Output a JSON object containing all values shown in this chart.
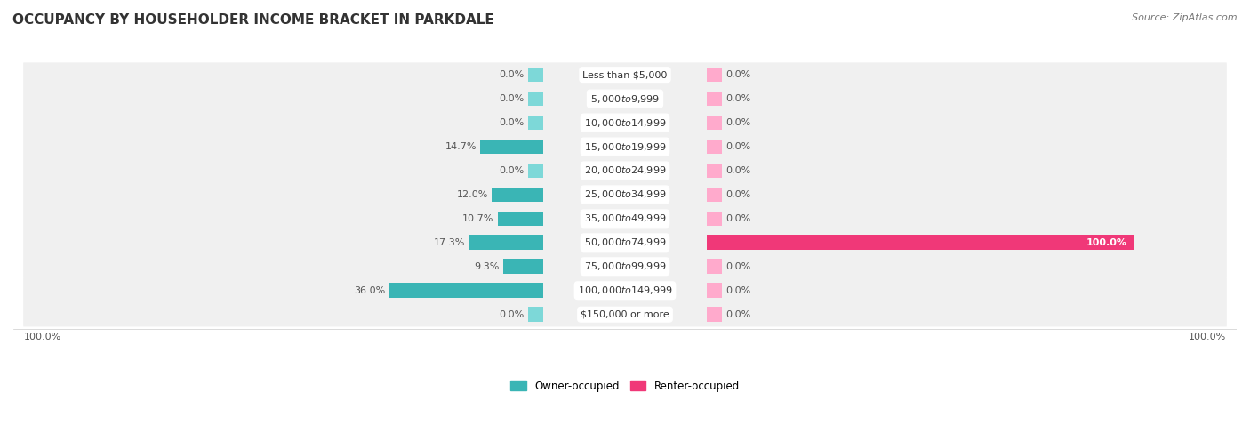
{
  "title": "OCCUPANCY BY HOUSEHOLDER INCOME BRACKET IN PARKDALE",
  "source": "Source: ZipAtlas.com",
  "categories": [
    "Less than $5,000",
    "$5,000 to $9,999",
    "$10,000 to $14,999",
    "$15,000 to $19,999",
    "$20,000 to $24,999",
    "$25,000 to $34,999",
    "$35,000 to $49,999",
    "$50,000 to $74,999",
    "$75,000 to $99,999",
    "$100,000 to $149,999",
    "$150,000 or more"
  ],
  "owner_pct": [
    0.0,
    0.0,
    0.0,
    14.7,
    0.0,
    12.0,
    10.7,
    17.3,
    9.3,
    36.0,
    0.0
  ],
  "renter_pct": [
    0.0,
    0.0,
    0.0,
    0.0,
    0.0,
    0.0,
    0.0,
    100.0,
    0.0,
    0.0,
    0.0
  ],
  "owner_color_light": "#7dd8d8",
  "owner_color_dark": "#3ab5b5",
  "renter_color_light": "#ffaacc",
  "renter_color_dark": "#f03878",
  "row_bg_light": "#f0f0f0",
  "row_bg_dark": "#e8e8e8",
  "legend_owner": "Owner-occupied",
  "legend_renter": "Renter-occupied",
  "title_fontsize": 11,
  "source_fontsize": 8,
  "label_fontsize": 8,
  "cat_fontsize": 8
}
